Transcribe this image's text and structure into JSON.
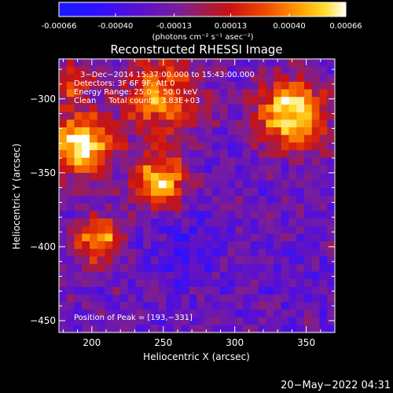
{
  "colorbar": {
    "tick_labels": [
      "-0.00066",
      "-0.00040",
      "-0.00013",
      "0.00013",
      "0.00040",
      "0.00066"
    ],
    "tick_values": [
      -0.00066,
      -0.0004,
      -0.00013,
      0.00013,
      0.0004,
      0.00066
    ],
    "units": "(photons cm⁻² s⁻¹ asec⁻²)",
    "min": -0.00066,
    "max": 0.00066
  },
  "chart_data": {
    "type": "heatmap",
    "title": "Reconstructed RHESSI Image",
    "xlabel": "Heliocentric X (arcsec)",
    "ylabel": "Heliocentric Y (arcsec)",
    "xlim": [
      177,
      370
    ],
    "ylim": [
      -458,
      -273
    ],
    "x_ticks": [
      200,
      250,
      300,
      350
    ],
    "y_ticks": [
      -300,
      -350,
      -400,
      -450
    ],
    "x_tick_labels": [
      "200",
      "250",
      "300",
      "350"
    ],
    "y_tick_labels": [
      "−300",
      "−350",
      "−400",
      "−450"
    ],
    "sources": [
      {
        "x": 193,
        "y": -331,
        "peak": 0.00066,
        "width": 22
      },
      {
        "x": 340,
        "y": -310,
        "peak": 0.00064,
        "width": 24
      },
      {
        "x": 247,
        "y": -355,
        "peak": 0.00055,
        "width": 18
      },
      {
        "x": 205,
        "y": -395,
        "peak": 0.0005,
        "width": 16
      },
      {
        "x": 248,
        "y": -298,
        "peak": 0.0004,
        "width": 26
      },
      {
        "x": 185,
        "y": -288,
        "peak": 0.00028,
        "width": 14
      }
    ],
    "negative_regions": [
      {
        "x": 265,
        "y": -403,
        "depth": -0.00048,
        "width": 20
      },
      {
        "x": 342,
        "y": -420,
        "depth": -0.0003,
        "width": 18
      },
      {
        "x": 198,
        "y": -360,
        "depth": -0.00028,
        "width": 18
      }
    ],
    "background_level": -0.00022,
    "annotations": [
      "3−Dec−2014 15:37:00.000 to 15:43:00.000",
      "Detectors: 3F 6F 9F, Att 0",
      "Energy Range: 25.0 − 50.0 keV",
      "Clean     Total counts: 3.83E+03"
    ],
    "peak_label": "Position of Peak = [193,−331]"
  },
  "footer": {
    "timestamp": "20−May−2022 04:31"
  }
}
